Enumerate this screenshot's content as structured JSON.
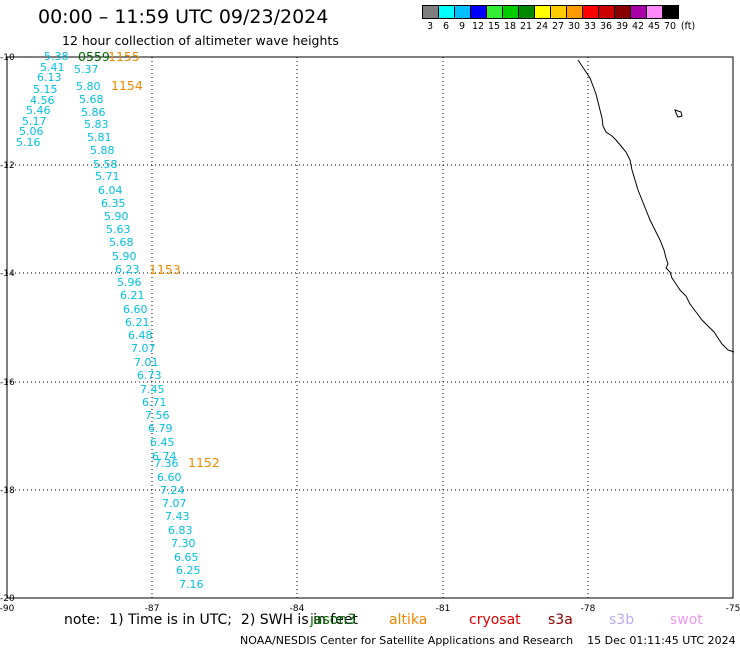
{
  "header": {
    "title": "00:00 – 11:59 UTC 09/23/2024",
    "subtitle": "12 hour collection of altimeter wave heights"
  },
  "color_scale": {
    "unit": "(ft)",
    "bins": [
      {
        "label": "3",
        "color": "#7f7f7f"
      },
      {
        "label": "6",
        "color": "#00ffff"
      },
      {
        "label": "9",
        "color": "#00bfff"
      },
      {
        "label": "12",
        "color": "#0000ff"
      },
      {
        "label": "15",
        "color": "#33ee33"
      },
      {
        "label": "18",
        "color": "#00cc00"
      },
      {
        "label": "21",
        "color": "#008800"
      },
      {
        "label": "24",
        "color": "#ffff00"
      },
      {
        "label": "27",
        "color": "#ffcc00"
      },
      {
        "label": "30",
        "color": "#ff9900"
      },
      {
        "label": "33",
        "color": "#ff0000"
      },
      {
        "label": "36",
        "color": "#cc0000"
      },
      {
        "label": "39",
        "color": "#880000"
      },
      {
        "label": "42",
        "color": "#aa00aa"
      },
      {
        "label": "45",
        "color": "#ff88ff"
      },
      {
        "label": "70",
        "color": "#000000"
      }
    ]
  },
  "map": {
    "lat_labels": [
      "-10",
      "-12",
      "-14",
      "-16",
      "-18",
      "-20"
    ],
    "lon_labels": [
      "-90",
      "-87",
      "-84",
      "-81",
      "-78",
      "-75"
    ],
    "pass_labels": [
      "0559",
      "1155",
      "1154",
      "1153",
      "1152"
    ],
    "wave_values": [
      "5.38",
      "5.41",
      "6.13",
      "5.15",
      "4.56",
      "5.46",
      "5.17",
      "5.06",
      "5.16",
      "5.37",
      "5.80",
      "5.68",
      "5.86",
      "5.83",
      "5.81",
      "5.88",
      "5.58",
      "5.71",
      "6.04",
      "6.35",
      "5.90",
      "5.63",
      "5.68",
      "5.90",
      "6.23",
      "5.96",
      "6.21",
      "6.60",
      "6.21",
      "6.48",
      "7.07",
      "7.01",
      "6.73",
      "7.45",
      "6.71",
      "7.56",
      "6.79",
      "6.45",
      "6.74",
      "7.36",
      "6.60",
      "7.24",
      "7.07",
      "7.43",
      "6.83",
      "7.30",
      "6.65",
      "6.25",
      "7.16"
    ]
  },
  "note": "note:  1) Time is in UTC;  2) SWH is in feet",
  "legend": [
    {
      "label": "jason3",
      "color": "#006600"
    },
    {
      "label": "altika",
      "color": "#ee8800"
    },
    {
      "label": "cryosat",
      "color": "#dd0000"
    },
    {
      "label": "s3a",
      "color": "#880000"
    },
    {
      "label": "s3b",
      "color": "#bbaaee"
    },
    {
      "label": "swot",
      "color": "#ee99ee"
    }
  ],
  "footer": "NOAA/NESDIS Center for Satellite Applications and Research    15 Dec 01:11:45 UTC 2024"
}
